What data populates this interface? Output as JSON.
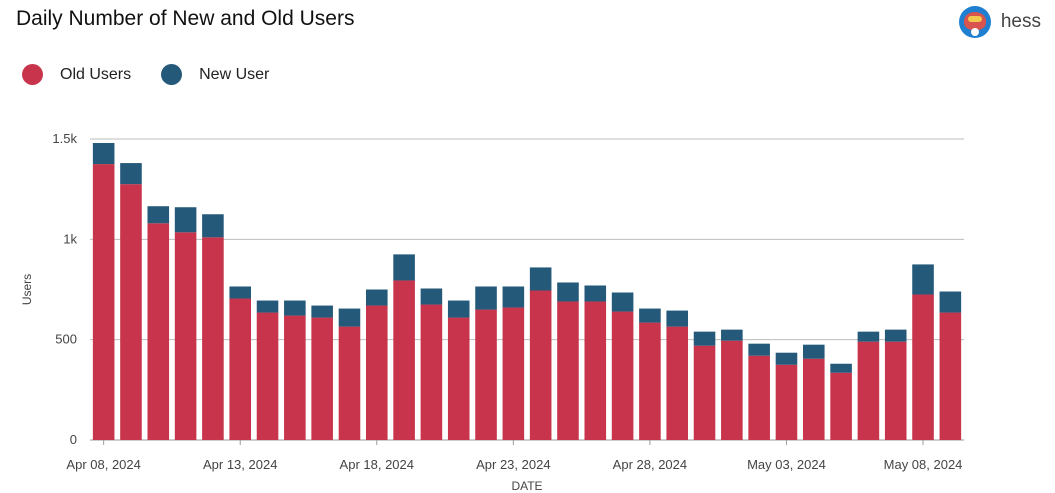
{
  "header": {
    "title": "Daily Number of New and Old Users",
    "user_name": "hess"
  },
  "colors": {
    "old_users": "#c8344b",
    "new_users": "#25597a"
  },
  "chart_data": {
    "type": "bar",
    "stacked": true,
    "title": "Daily Number of New and Old Users",
    "xlabel": "DATE",
    "ylabel": "Users",
    "ylim": [
      0,
      1500
    ],
    "yticks": [
      0,
      500,
      1000,
      1500
    ],
    "ytick_labels": [
      "0",
      "500",
      "1k",
      "1.5k"
    ],
    "legend_position": "top-left",
    "grid": true,
    "categories": [
      "Apr 08, 2024",
      "Apr 09, 2024",
      "Apr 10, 2024",
      "Apr 11, 2024",
      "Apr 12, 2024",
      "Apr 13, 2024",
      "Apr 14, 2024",
      "Apr 15, 2024",
      "Apr 16, 2024",
      "Apr 17, 2024",
      "Apr 18, 2024",
      "Apr 19, 2024",
      "Apr 20, 2024",
      "Apr 21, 2024",
      "Apr 22, 2024",
      "Apr 23, 2024",
      "Apr 24, 2024",
      "Apr 25, 2024",
      "Apr 26, 2024",
      "Apr 27, 2024",
      "Apr 28, 2024",
      "Apr 29, 2024",
      "Apr 30, 2024",
      "May 01, 2024",
      "May 02, 2024",
      "May 03, 2024",
      "May 04, 2024",
      "May 05, 2024",
      "May 06, 2024",
      "May 07, 2024",
      "May 08, 2024",
      "May 09, 2024"
    ],
    "xtick_labels": [
      {
        "index": 0,
        "label": "Apr 08, 2024"
      },
      {
        "index": 5,
        "label": "Apr 13, 2024"
      },
      {
        "index": 10,
        "label": "Apr 18, 2024"
      },
      {
        "index": 15,
        "label": "Apr 23, 2024"
      },
      {
        "index": 20,
        "label": "Apr 28, 2024"
      },
      {
        "index": 25,
        "label": "May 03, 2024"
      },
      {
        "index": 30,
        "label": "May 08, 2024"
      }
    ],
    "series": [
      {
        "name": "Old Users",
        "values": [
          1375,
          1275,
          1080,
          1035,
          1010,
          705,
          635,
          620,
          610,
          565,
          670,
          795,
          675,
          610,
          650,
          660,
          745,
          690,
          690,
          640,
          585,
          565,
          470,
          495,
          420,
          375,
          405,
          335,
          490,
          490,
          725,
          635
        ]
      },
      {
        "name": "New User",
        "values": [
          105,
          105,
          85,
          125,
          115,
          60,
          60,
          75,
          60,
          90,
          80,
          130,
          80,
          85,
          115,
          105,
          115,
          95,
          80,
          95,
          70,
          80,
          70,
          55,
          60,
          60,
          70,
          45,
          50,
          60,
          150,
          105
        ]
      }
    ]
  }
}
